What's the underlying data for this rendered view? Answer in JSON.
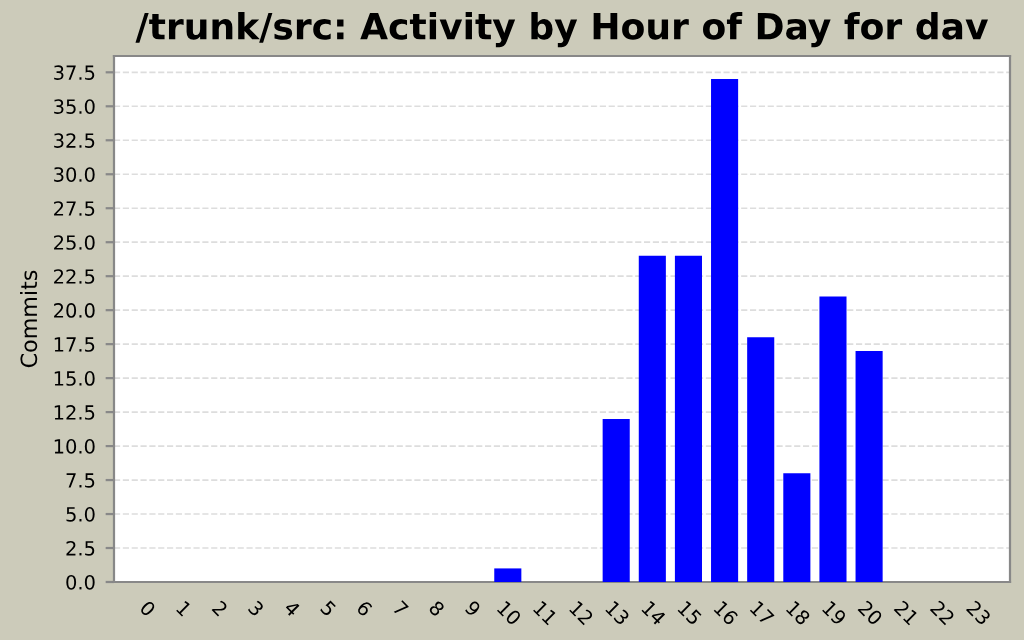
{
  "chart_data": {
    "type": "bar",
    "title": "/trunk/src: Activity by Hour of Day for dav",
    "ylabel": "Commits",
    "categories": [
      "0",
      "1",
      "2",
      "3",
      "4",
      "5",
      "6",
      "7",
      "8",
      "9",
      "10",
      "11",
      "12",
      "13",
      "14",
      "15",
      "16",
      "17",
      "18",
      "19",
      "20",
      "21",
      "22",
      "23"
    ],
    "values": [
      0,
      0,
      0,
      0,
      0,
      0,
      0,
      0,
      0,
      0,
      1,
      0,
      0,
      12,
      24,
      24,
      37,
      18,
      8,
      21,
      17,
      0,
      0,
      0
    ],
    "color": "#0000ff",
    "ylim": [
      0,
      38.7
    ],
    "yticks": [
      {
        "value": 0,
        "label": "0.0"
      },
      {
        "value": 2.5,
        "label": "2.5"
      },
      {
        "value": 5,
        "label": "5.0"
      },
      {
        "value": 7.5,
        "label": "7.5"
      },
      {
        "value": 10,
        "label": "10.0"
      },
      {
        "value": 12.5,
        "label": "12.5"
      },
      {
        "value": 15,
        "label": "15.0"
      },
      {
        "value": 17.5,
        "label": "17.5"
      },
      {
        "value": 20,
        "label": "20.0"
      },
      {
        "value": 22.5,
        "label": "22.5"
      },
      {
        "value": 25,
        "label": "25.0"
      },
      {
        "value": 27.5,
        "label": "27.5"
      },
      {
        "value": 30,
        "label": "30.0"
      },
      {
        "value": 32.5,
        "label": "32.5"
      },
      {
        "value": 35,
        "label": "35.0"
      },
      {
        "value": 37.5,
        "label": "37.5"
      }
    ],
    "grid": "y"
  }
}
